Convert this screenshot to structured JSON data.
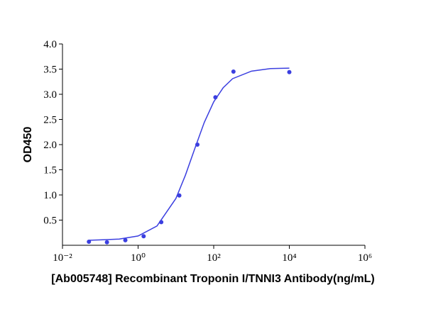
{
  "chart_data": {
    "type": "scatter",
    "x_label": "[Ab005748] Recombinant Troponin I/TNNI3 Antibody(ng/mL)",
    "y_label": "OD450",
    "xscale": "log",
    "xlim": [
      0.01,
      1000000
    ],
    "xticks": [
      {
        "value": 0.01,
        "label": "10⁻²"
      },
      {
        "value": 1,
        "label": "10⁰"
      },
      {
        "value": 100,
        "label": "10²"
      },
      {
        "value": 10000,
        "label": "10⁴"
      },
      {
        "value": 1000000,
        "label": "10⁶"
      }
    ],
    "ylim": [
      0,
      4
    ],
    "yticks": [
      {
        "value": 0.5,
        "label": "0.5"
      },
      {
        "value": 1,
        "label": "1.0"
      },
      {
        "value": 1.5,
        "label": "1.5"
      },
      {
        "value": 2,
        "label": "2.0"
      },
      {
        "value": 2.5,
        "label": "2.5"
      },
      {
        "value": 3,
        "label": "3.0"
      },
      {
        "value": 3.5,
        "label": "3.5"
      },
      {
        "value": 4,
        "label": "4.0"
      }
    ],
    "series": [
      {
        "color": "#3b3fe0",
        "mode": "markers",
        "x": [
          0.05,
          0.15,
          0.46,
          1.4,
          4.1,
          12.3,
          37,
          111,
          333,
          10000
        ],
        "values": [
          0.07,
          0.06,
          0.1,
          0.18,
          0.46,
          0.99,
          2.0,
          2.94,
          3.45,
          3.44
        ]
      },
      {
        "color": "#3b3fe0",
        "mode": "line",
        "x": [
          0.05,
          0.1,
          0.316,
          1,
          3.16,
          10,
          17.8,
          31.6,
          56.2,
          100,
          178,
          316,
          1000,
          3162,
          10000
        ],
        "values": [
          0.1,
          0.107,
          0.124,
          0.185,
          0.383,
          0.93,
          1.39,
          1.92,
          2.44,
          2.85,
          3.13,
          3.31,
          3.46,
          3.51,
          3.52
        ]
      }
    ]
  }
}
